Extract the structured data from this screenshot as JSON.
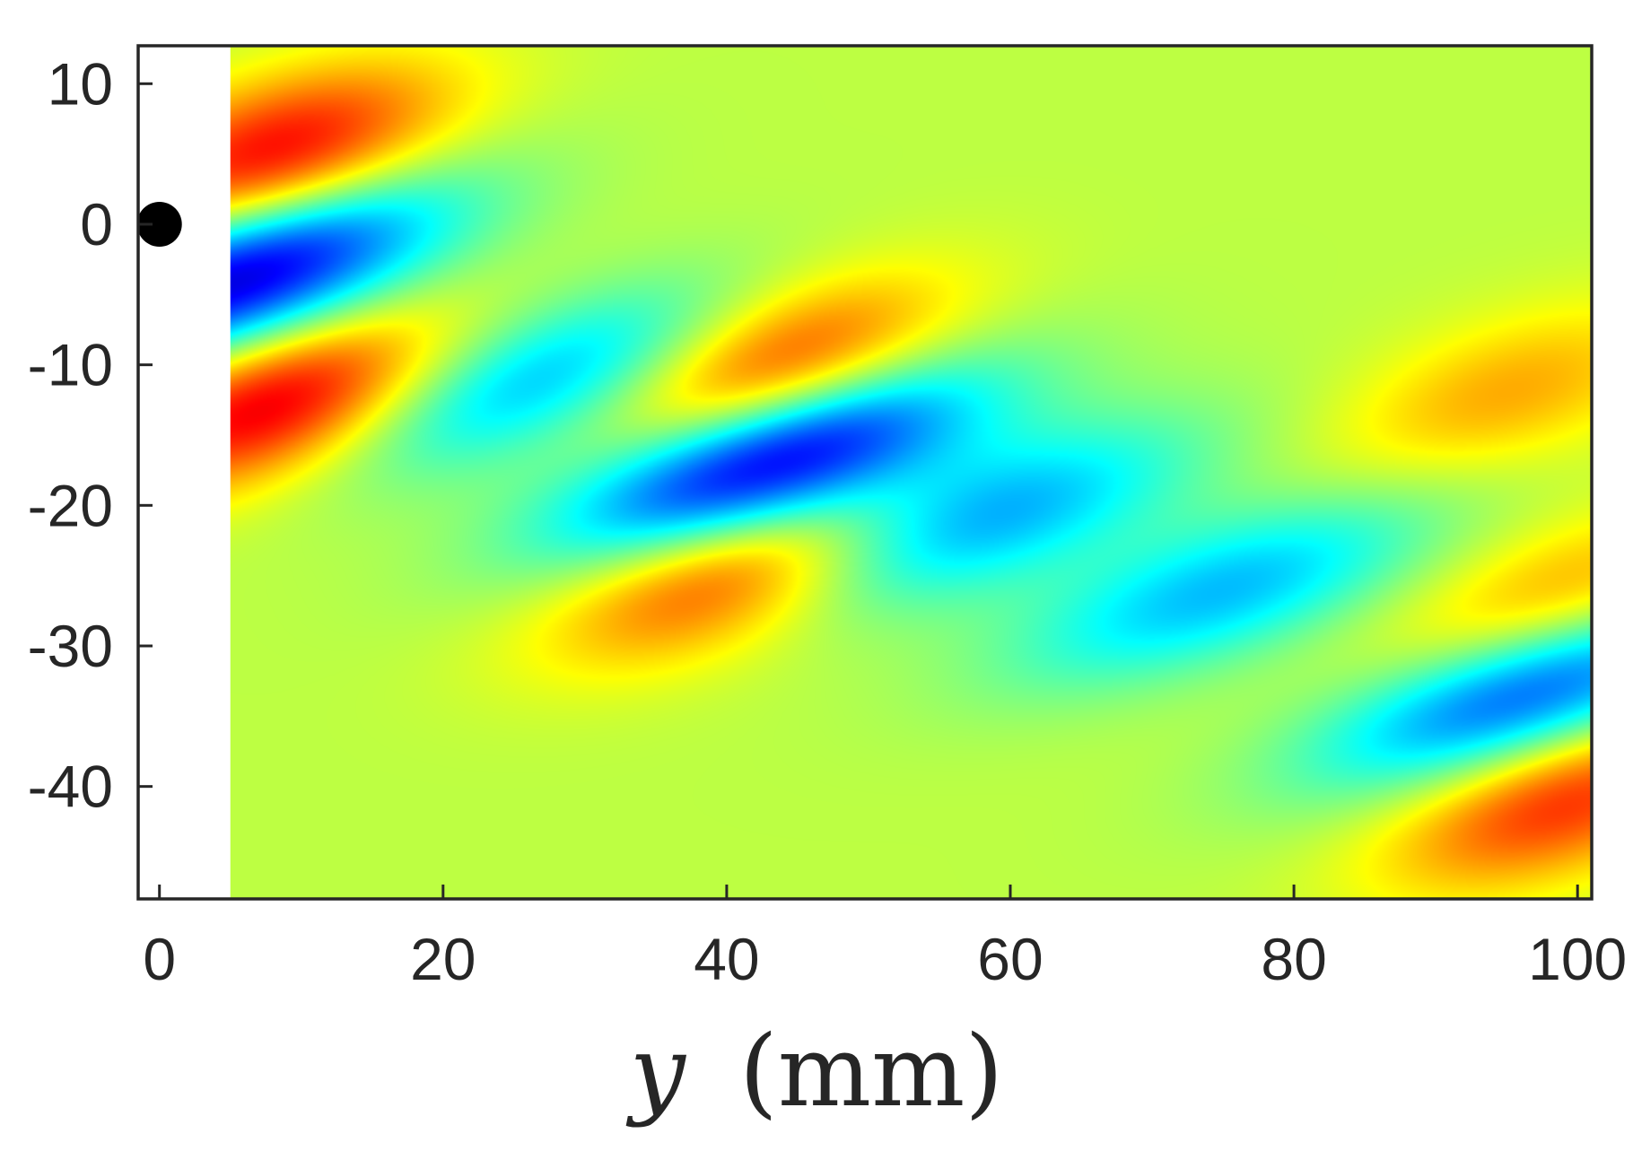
{
  "chart_data": {
    "type": "heatmap",
    "title": "",
    "xlabel": {
      "variable": "y",
      "unit": "(mm)"
    },
    "ylabel": "",
    "xlim": [
      -1.5,
      101
    ],
    "ylim": [
      -48,
      12.7
    ],
    "data_x_start": 5,
    "xticks": [
      0,
      20,
      40,
      60,
      80,
      100
    ],
    "xtick_labels": [
      "0",
      "20",
      "40",
      "60",
      "80",
      "100"
    ],
    "yticks": [
      10,
      0,
      -10,
      -20,
      -30,
      -40
    ],
    "ytick_labels": [
      "10",
      "0",
      "-10",
      "-20",
      "-30",
      "-40"
    ],
    "colormap": "jet",
    "color_range": [
      -1,
      1
    ],
    "background_value": 0.12,
    "grid": false,
    "colorbar": false,
    "marker": {
      "x": 0,
      "y": 0,
      "shape": "circle",
      "color": "#000000"
    },
    "features": [
      {
        "kind": "trough",
        "center_x": 5,
        "center_y": -4,
        "value": -1.0
      },
      {
        "kind": "trough",
        "center_x": 27,
        "center_y": -11,
        "value": -0.55
      },
      {
        "kind": "trough",
        "center_x": 43,
        "center_y": -17,
        "value": -1.0
      },
      {
        "kind": "trough",
        "center_x": 58,
        "center_y": -21,
        "value": -0.55
      },
      {
        "kind": "trough",
        "center_x": 75,
        "center_y": -26,
        "value": -0.5
      },
      {
        "kind": "trough",
        "center_x": 97,
        "center_y": -33,
        "value": -0.78
      },
      {
        "kind": "crest",
        "center_x": 8,
        "center_y": 5,
        "value": 0.65
      },
      {
        "kind": "crest",
        "center_x": 8,
        "center_y": -13,
        "value": 0.72
      },
      {
        "kind": "crest",
        "center_x": 43,
        "center_y": -10,
        "value": 0.58
      },
      {
        "kind": "crest",
        "center_x": 40,
        "center_y": -25,
        "value": 0.56
      },
      {
        "kind": "crest",
        "center_x": 99,
        "center_y": -41,
        "value": 0.55
      },
      {
        "kind": "crest",
        "center_x": 99,
        "center_y": -27,
        "value": 0.38
      },
      {
        "kind": "crest",
        "center_x": 95,
        "center_y": -12,
        "value": 0.3
      }
    ]
  }
}
